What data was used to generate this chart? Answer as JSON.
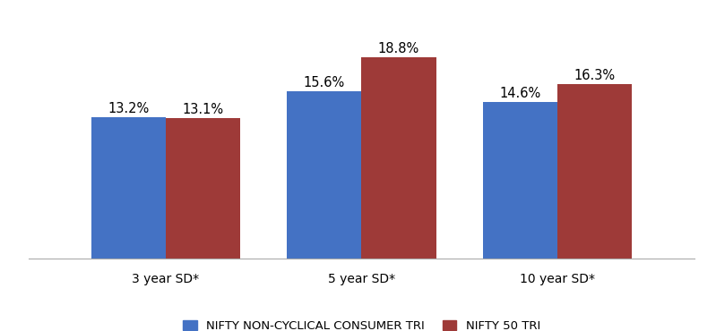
{
  "categories": [
    "3 year SD*",
    "5 year SD*",
    "10 year SD*"
  ],
  "series": [
    {
      "name": "NIFTY NON-CYCLICAL CONSUMER TRI",
      "values": [
        13.2,
        15.6,
        14.6
      ],
      "color": "#4472C4"
    },
    {
      "name": "NIFTY 50 TRI",
      "values": [
        13.1,
        18.8,
        16.3
      ],
      "color": "#9E3A38"
    }
  ],
  "bar_labels": [
    [
      "13.2%",
      "13.1%"
    ],
    [
      "15.6%",
      "18.8%"
    ],
    [
      "14.6%",
      "16.3%"
    ]
  ],
  "ylim": [
    0,
    22
  ],
  "bar_width": 0.38,
  "label_fontsize": 10.5,
  "tick_fontsize": 10,
  "legend_fontsize": 9.5,
  "background_color": "#ffffff"
}
